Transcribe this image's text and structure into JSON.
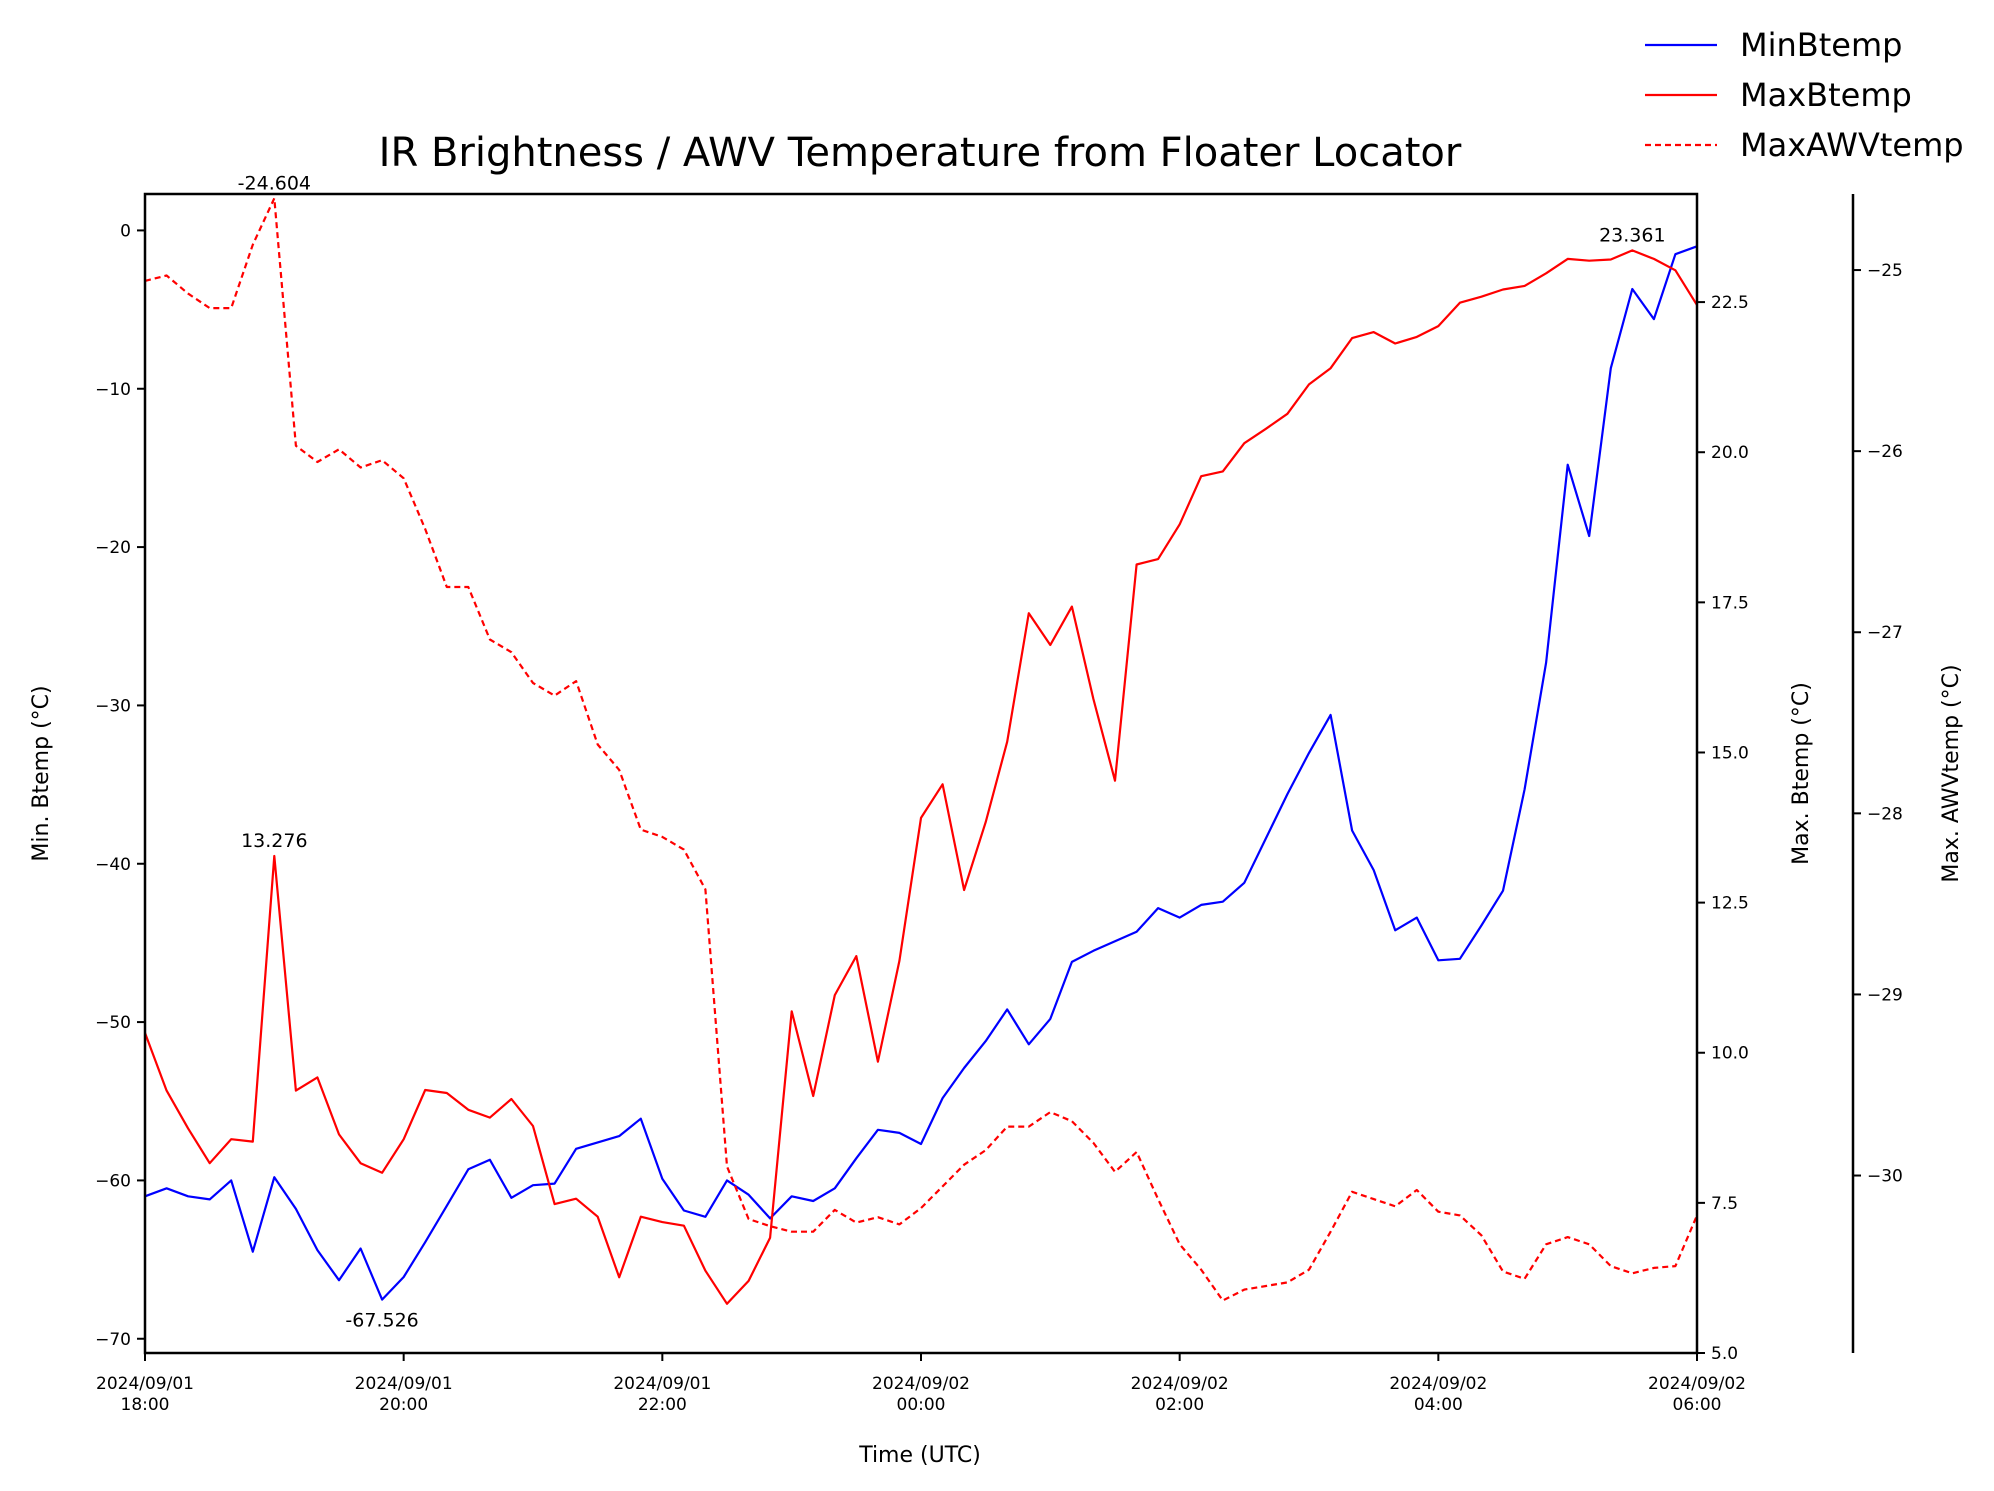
{
  "chart_data": {
    "type": "line",
    "title": "IR Brightness / AWV Temperature from Floater Locator",
    "xlabel": "Time (UTC)",
    "xlim": [
      0,
      12
    ],
    "x_unit_note": "hours after 2024/09/01 18:00 UTC",
    "x_ticks": [
      {
        "value": 0,
        "label": "2024/09/01\n18:00"
      },
      {
        "value": 2,
        "label": "2024/09/01\n20:00"
      },
      {
        "value": 4,
        "label": "2024/09/01\n22:00"
      },
      {
        "value": 6,
        "label": "2024/09/02\n00:00"
      },
      {
        "value": 8,
        "label": "2024/09/02\n02:00"
      },
      {
        "value": 10,
        "label": "2024/09/02\n04:00"
      },
      {
        "value": 12,
        "label": "2024/09/02\n06:00"
      }
    ],
    "axes": {
      "left": {
        "label": "Min. Btemp (°C)",
        "ylim": [
          -70.9,
          2.3
        ],
        "ticks": [
          0,
          -10,
          -20,
          -30,
          -40,
          -50,
          -60,
          -70
        ]
      },
      "right": {
        "label": "Max. Btemp (°C)",
        "ylim": [
          5.0,
          24.3
        ],
        "ticks": [
          5.0,
          7.5,
          10.0,
          12.5,
          15.0,
          17.5,
          20.0,
          22.5
        ]
      },
      "far_right": {
        "label": "Max. AWVtemp (°C)",
        "ylim": [
          -30.98,
          -24.58
        ],
        "ticks": [
          -25,
          -26,
          -27,
          -28,
          -29,
          -30
        ]
      }
    },
    "legend": {
      "placement": "top-right, outside plot"
    },
    "grid": false,
    "series": [
      {
        "name": "MinBtemp",
        "axis": "left",
        "color": "#0000ff",
        "style": "solid",
        "x": [
          0,
          0.1667,
          0.3333,
          0.5,
          0.6667,
          0.8333,
          1,
          1.1667,
          1.3333,
          1.5,
          1.6667,
          1.8333,
          2,
          2.1667,
          2.3333,
          2.5,
          2.6667,
          2.8333,
          3,
          3.1667,
          3.3333,
          3.5,
          3.6667,
          3.8333,
          4,
          4.1667,
          4.3333,
          4.5,
          4.6667,
          4.8333,
          5,
          5.1667,
          5.3333,
          5.5,
          5.6667,
          5.8333,
          6,
          6.1667,
          6.3333,
          6.5,
          6.6667,
          6.8333,
          7,
          7.1667,
          7.3333,
          7.5,
          7.6667,
          7.8333,
          8,
          8.1667,
          8.3333,
          8.5,
          8.6667,
          8.8333,
          9,
          9.1667,
          9.3333,
          9.5,
          9.6667,
          9.8333,
          10,
          10.1667,
          10.3333,
          10.5,
          10.6667,
          10.8333,
          11,
          11.1667,
          11.3333,
          11.5,
          11.6667,
          11.8333,
          12
        ],
        "values": [
          -61,
          -60.5,
          -61,
          -61.2,
          -60,
          -64.5,
          -59.8,
          -61.8,
          -64.4,
          -66.3,
          -64.3,
          -67.526,
          -66.1,
          -63.9,
          -61.6,
          -59.3,
          -58.7,
          -61.1,
          -60.3,
          -60.2,
          -58,
          -57.6,
          -57.2,
          -56.1,
          -59.9,
          -61.9,
          -62.3,
          -60,
          -60.9,
          -62.4,
          -61,
          -61.3,
          -60.5,
          -58.6,
          -56.8,
          -57,
          -57.7,
          -54.8,
          -52.9,
          -51.2,
          -49.2,
          -51.4,
          -49.8,
          -46.2,
          -45.5,
          -44.9,
          -44.3,
          -42.8,
          -43.4,
          -42.6,
          -42.4,
          -41.2,
          -38.4,
          -35.6,
          -33,
          -30.6,
          -37.9,
          -40.4,
          -44.2,
          -43.4,
          -46.1,
          -46,
          -43.9,
          -41.7,
          -35.3,
          -27.3,
          -14.8,
          -19.3,
          -8.7,
          -3.7,
          -5.6,
          -1.5,
          -1
        ]
      },
      {
        "name": "MaxBtemp",
        "axis": "right",
        "color": "#ff0000",
        "style": "solid",
        "x": [
          0,
          0.1667,
          0.3333,
          0.5,
          0.6667,
          0.8333,
          1,
          1.1667,
          1.3333,
          1.5,
          1.6667,
          1.8333,
          2,
          2.1667,
          2.3333,
          2.5,
          2.6667,
          2.8333,
          3,
          3.1667,
          3.3333,
          3.5,
          3.6667,
          3.8333,
          4,
          4.1667,
          4.3333,
          4.5,
          4.6667,
          4.8333,
          5,
          5.1667,
          5.3333,
          5.5,
          5.6667,
          5.8333,
          6,
          6.1667,
          6.3333,
          6.5,
          6.6667,
          6.8333,
          7,
          7.1667,
          7.3333,
          7.5,
          7.6667,
          7.8333,
          8,
          8.1667,
          8.3333,
          8.5,
          8.6667,
          8.8333,
          9,
          9.1667,
          9.3333,
          9.5,
          9.6667,
          9.8333,
          10,
          10.1667,
          10.3333,
          10.5,
          10.6667,
          10.8333,
          11,
          11.1667,
          11.3333,
          11.5,
          11.6667,
          11.8333,
          12
        ],
        "values": [
          10.33,
          9.37,
          8.74,
          8.16,
          8.56,
          8.52,
          13.276,
          9.37,
          9.59,
          8.64,
          8.16,
          8.0,
          8.56,
          9.38,
          9.33,
          9.05,
          8.92,
          9.23,
          8.78,
          7.48,
          7.57,
          7.27,
          6.26,
          7.27,
          7.18,
          7.12,
          6.37,
          5.82,
          6.2,
          6.92,
          10.69,
          9.28,
          10.96,
          11.61,
          9.85,
          11.53,
          13.91,
          14.47,
          12.71,
          13.84,
          15.18,
          17.32,
          16.79,
          17.43,
          15.89,
          14.53,
          18.13,
          18.22,
          18.8,
          19.6,
          19.68,
          20.15,
          20.39,
          20.64,
          21.13,
          21.4,
          21.9,
          22.0,
          21.81,
          21.92,
          22.1,
          22.49,
          22.59,
          22.71,
          22.77,
          22.98,
          23.22,
          23.19,
          23.21,
          23.361,
          23.22,
          23.03,
          22.45
        ]
      },
      {
        "name": "MaxAWVtemp",
        "axis": "far_right",
        "color": "#ff0000",
        "style": "dashed",
        "x": [
          0,
          0.1667,
          0.3333,
          0.5,
          0.6667,
          0.8333,
          1,
          1.1667,
          1.3333,
          1.5,
          1.6667,
          1.8333,
          2,
          2.1667,
          2.3333,
          2.5,
          2.6667,
          2.8333,
          3,
          3.1667,
          3.3333,
          3.5,
          3.6667,
          3.8333,
          4,
          4.1667,
          4.3333,
          4.5,
          4.6667,
          4.8333,
          5,
          5.1667,
          5.3333,
          5.5,
          5.6667,
          5.8333,
          6,
          6.1667,
          6.3333,
          6.5,
          6.6667,
          6.8333,
          7,
          7.1667,
          7.3333,
          7.5,
          7.6667,
          7.8333,
          8,
          8.1667,
          8.3333,
          8.5,
          8.6667,
          8.8333,
          9,
          9.1667,
          9.3333,
          9.5,
          9.6667,
          9.8333,
          10,
          10.1667,
          10.3333,
          10.5,
          10.6667,
          10.8333,
          11,
          11.1667,
          11.3333,
          11.5,
          11.6667,
          11.8333,
          12
        ],
        "values": [
          -25.06,
          -25.03,
          -25.13,
          -25.21,
          -25.21,
          -24.86,
          -24.604,
          -25.97,
          -26.06,
          -25.99,
          -26.09,
          -26.05,
          -26.15,
          -26.43,
          -26.75,
          -26.75,
          -27.04,
          -27.11,
          -27.28,
          -27.35,
          -27.27,
          -27.62,
          -27.76,
          -28.09,
          -28.13,
          -28.2,
          -28.42,
          -29.95,
          -30.24,
          -30.28,
          -30.31,
          -30.31,
          -30.19,
          -30.26,
          -30.23,
          -30.27,
          -30.18,
          -30.06,
          -29.94,
          -29.86,
          -29.73,
          -29.73,
          -29.65,
          -29.7,
          -29.82,
          -29.98,
          -29.87,
          -30.13,
          -30.38,
          -30.52,
          -30.69,
          -30.63,
          -30.61,
          -30.59,
          -30.52,
          -30.31,
          -30.09,
          -30.13,
          -30.17,
          -30.08,
          -30.2,
          -30.22,
          -30.33,
          -30.53,
          -30.57,
          -30.38,
          -30.34,
          -30.38,
          -30.5,
          -30.54,
          -30.51,
          -30.5,
          -30.22
        ]
      }
    ],
    "annotations": [
      {
        "series": "MaxAWVtemp",
        "x": 1,
        "text": "-24.604"
      },
      {
        "series": "MaxBtemp",
        "x": 1,
        "text": "13.276"
      },
      {
        "series": "MinBtemp",
        "x": 1.8333,
        "text": "-67.526"
      },
      {
        "series": "MaxBtemp",
        "x": 11.5,
        "text": "23.361"
      }
    ]
  }
}
